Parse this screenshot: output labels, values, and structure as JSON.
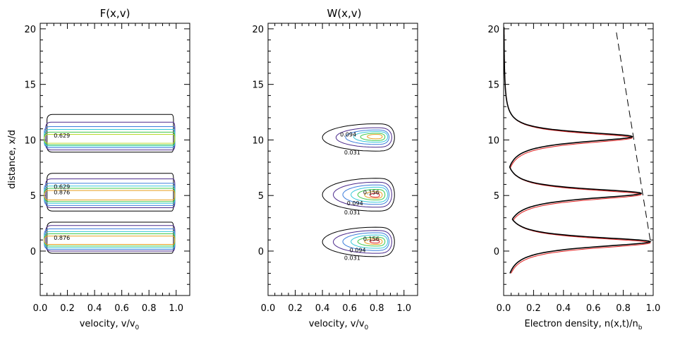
{
  "chart_data": [
    {
      "type": "contour",
      "title": "F(x,v)",
      "xlabel": "velocity, v/v",
      "xlabel_sub": "0",
      "ylabel": "distance, x/d",
      "xlim": [
        0,
        1.1
      ],
      "ylim": [
        -4,
        20.5
      ],
      "xticks": [
        "0.0",
        "0.2",
        "0.4",
        "0.6",
        "0.8",
        "1.0"
      ],
      "yticks": [
        "0",
        "5",
        "10",
        "15",
        "20"
      ],
      "groups": [
        {
          "x_center": 10.1,
          "contours": [
            {
              "v0": 0.05,
              "v1": 0.97,
              "x_low": 8.9,
              "x_high": 12.3,
              "color": "#000000"
            },
            {
              "v0": 0.04,
              "v1": 0.98,
              "x_low": 9.1,
              "x_high": 11.6,
              "color": "#4b2a8c"
            },
            {
              "v0": 0.03,
              "v1": 0.98,
              "x_low": 9.3,
              "x_high": 11.2,
              "color": "#3c7ddc"
            },
            {
              "v0": 0.03,
              "v1": 0.98,
              "x_low": 9.45,
              "x_high": 10.95,
              "color": "#36c8d8"
            },
            {
              "v0": 0.03,
              "v1": 0.98,
              "x_low": 9.55,
              "x_high": 10.7,
              "color": "#3ec84a"
            },
            {
              "v0": 0.03,
              "v1": 0.98,
              "x_low": 9.7,
              "x_high": 10.5,
              "color": "#b8d82a"
            }
          ],
          "labels": [
            {
              "text": "0.629",
              "v": 0.1,
              "x": 10.4
            }
          ]
        },
        {
          "x_center": 5.0,
          "contours": [
            {
              "v0": 0.05,
              "v1": 0.97,
              "x_low": 3.6,
              "x_high": 7.0,
              "color": "#000000"
            },
            {
              "v0": 0.04,
              "v1": 0.98,
              "x_low": 3.9,
              "x_high": 6.5,
              "color": "#4b2a8c"
            },
            {
              "v0": 0.03,
              "v1": 0.98,
              "x_low": 4.1,
              "x_high": 6.1,
              "color": "#3c7ddc"
            },
            {
              "v0": 0.03,
              "v1": 0.98,
              "x_low": 4.3,
              "x_high": 5.85,
              "color": "#36c8d8"
            },
            {
              "v0": 0.03,
              "v1": 0.98,
              "x_low": 4.45,
              "x_high": 5.65,
              "color": "#3ec84a"
            },
            {
              "v0": 0.03,
              "v1": 0.98,
              "x_low": 4.6,
              "x_high": 5.45,
              "color": "#e8a020"
            }
          ],
          "labels": [
            {
              "text": "0.629",
              "v": 0.1,
              "x": 5.8
            },
            {
              "text": "0.876",
              "v": 0.1,
              "x": 5.3
            }
          ]
        },
        {
          "x_center": 1.0,
          "contours": [
            {
              "v0": 0.05,
              "v1": 0.97,
              "x_low": -0.2,
              "x_high": 2.6,
              "color": "#000000"
            },
            {
              "v0": 0.04,
              "v1": 0.98,
              "x_low": 0.0,
              "x_high": 2.3,
              "color": "#4b2a8c"
            },
            {
              "v0": 0.03,
              "v1": 0.98,
              "x_low": 0.15,
              "x_high": 2.0,
              "color": "#3c7ddc"
            },
            {
              "v0": 0.03,
              "v1": 0.98,
              "x_low": 0.3,
              "x_high": 1.75,
              "color": "#36c8d8"
            },
            {
              "v0": 0.03,
              "v1": 0.98,
              "x_low": 0.45,
              "x_high": 1.55,
              "color": "#3ec84a"
            },
            {
              "v0": 0.03,
              "v1": 0.98,
              "x_low": 0.6,
              "x_high": 1.35,
              "color": "#e8a020"
            }
          ],
          "labels": [
            {
              "text": "0.876",
              "v": 0.1,
              "x": 1.2
            }
          ]
        }
      ]
    },
    {
      "type": "contour",
      "title": "W(x,v)",
      "xlabel": "velocity, v/v",
      "xlabel_sub": "0",
      "ylabel": "",
      "xlim": [
        0,
        1.1
      ],
      "ylim": [
        -4,
        20.5
      ],
      "xticks": [
        "0.0",
        "0.2",
        "0.4",
        "0.6",
        "0.8",
        "1.0"
      ],
      "yticks": [
        "0",
        "5",
        "10",
        "15",
        "20"
      ],
      "groups": [
        {
          "peak_v": 0.79,
          "peak_x": 10.3,
          "contours": [
            {
              "v0": 0.4,
              "v1": 0.93,
              "x_low": 9.0,
              "x_high": 11.45,
              "color": "#000000"
            },
            {
              "v0": 0.5,
              "v1": 0.91,
              "x_low": 9.35,
              "x_high": 11.1,
              "color": "#4b2a8c"
            },
            {
              "v0": 0.57,
              "v1": 0.89,
              "x_low": 9.6,
              "x_high": 10.9,
              "color": "#3c7ddc"
            },
            {
              "v0": 0.63,
              "v1": 0.88,
              "x_low": 9.8,
              "x_high": 10.75,
              "color": "#36c8d8"
            },
            {
              "v0": 0.68,
              "v1": 0.86,
              "x_low": 9.95,
              "x_high": 10.6,
              "color": "#3ec84a"
            },
            {
              "v0": 0.73,
              "v1": 0.84,
              "x_low": 10.1,
              "x_high": 10.5,
              "color": "#e8a020"
            }
          ],
          "labels": [
            {
              "text": "0.094",
              "v": 0.53,
              "x": 10.5
            },
            {
              "text": "0.031",
              "v": 0.56,
              "x": 8.9
            }
          ]
        },
        {
          "peak_v": 0.79,
          "peak_x": 5.0,
          "contours": [
            {
              "v0": 0.4,
              "v1": 0.93,
              "x_low": 3.6,
              "x_high": 6.55,
              "color": "#000000"
            },
            {
              "v0": 0.48,
              "v1": 0.91,
              "x_low": 3.95,
              "x_high": 6.2,
              "color": "#4b2a8c"
            },
            {
              "v0": 0.55,
              "v1": 0.89,
              "x_low": 4.2,
              "x_high": 5.95,
              "color": "#3c7ddc"
            },
            {
              "v0": 0.61,
              "v1": 0.88,
              "x_low": 4.4,
              "x_high": 5.75,
              "color": "#36c8d8"
            },
            {
              "v0": 0.66,
              "v1": 0.86,
              "x_low": 4.6,
              "x_high": 5.55,
              "color": "#3ec84a"
            },
            {
              "v0": 0.71,
              "v1": 0.84,
              "x_low": 4.75,
              "x_high": 5.35,
              "color": "#e8a020"
            },
            {
              "v0": 0.75,
              "v1": 0.82,
              "x_low": 4.85,
              "x_high": 5.2,
              "color": "#e02020"
            }
          ],
          "labels": [
            {
              "text": "0.156",
              "v": 0.7,
              "x": 5.3
            },
            {
              "text": "0.094",
              "v": 0.58,
              "x": 4.3
            },
            {
              "text": "0.031",
              "v": 0.56,
              "x": 3.5
            }
          ]
        },
        {
          "peak_v": 0.79,
          "peak_x": 0.85,
          "contours": [
            {
              "v0": 0.4,
              "v1": 0.93,
              "x_low": -0.5,
              "x_high": 2.15,
              "color": "#000000"
            },
            {
              "v0": 0.48,
              "v1": 0.91,
              "x_low": -0.2,
              "x_high": 1.85,
              "color": "#4b2a8c"
            },
            {
              "v0": 0.55,
              "v1": 0.89,
              "x_low": 0.05,
              "x_high": 1.65,
              "color": "#3c7ddc"
            },
            {
              "v0": 0.61,
              "v1": 0.88,
              "x_low": 0.25,
              "x_high": 1.45,
              "color": "#36c8d8"
            },
            {
              "v0": 0.66,
              "v1": 0.86,
              "x_low": 0.45,
              "x_high": 1.25,
              "color": "#3ec84a"
            },
            {
              "v0": 0.71,
              "v1": 0.84,
              "x_low": 0.6,
              "x_high": 1.1,
              "color": "#e8a020"
            },
            {
              "v0": 0.75,
              "v1": 0.82,
              "x_low": 0.72,
              "x_high": 0.98,
              "color": "#e02020"
            }
          ],
          "labels": [
            {
              "text": "0.156",
              "v": 0.7,
              "x": 1.1
            },
            {
              "text": "0.094",
              "v": 0.6,
              "x": 0.1
            },
            {
              "text": "0.031",
              "v": 0.56,
              "x": -0.6
            }
          ]
        }
      ]
    },
    {
      "type": "line",
      "title": "",
      "xlabel": "Electron density, n(x,t)/n",
      "xlabel_sub": "b",
      "ylabel": "",
      "xlim": [
        0,
        1.0
      ],
      "ylim": [
        -4,
        20.5
      ],
      "xticks": [
        "0.0",
        "0.2",
        "0.4",
        "0.6",
        "0.8",
        "1.0"
      ],
      "yticks": [
        "0",
        "5",
        "10",
        "15",
        "20"
      ],
      "colors": {
        "black": "#000000",
        "red": "#e02020"
      },
      "peaks": [
        {
          "x": 0.85,
          "amp": 0.98
        },
        {
          "x": 5.2,
          "amp": 0.92
        },
        {
          "x": 10.3,
          "amp": 0.86
        }
      ],
      "dashed_envelope": {
        "x": [
          1.0,
          20.0
        ],
        "n": [
          0.98,
          0.75
        ]
      }
    }
  ]
}
